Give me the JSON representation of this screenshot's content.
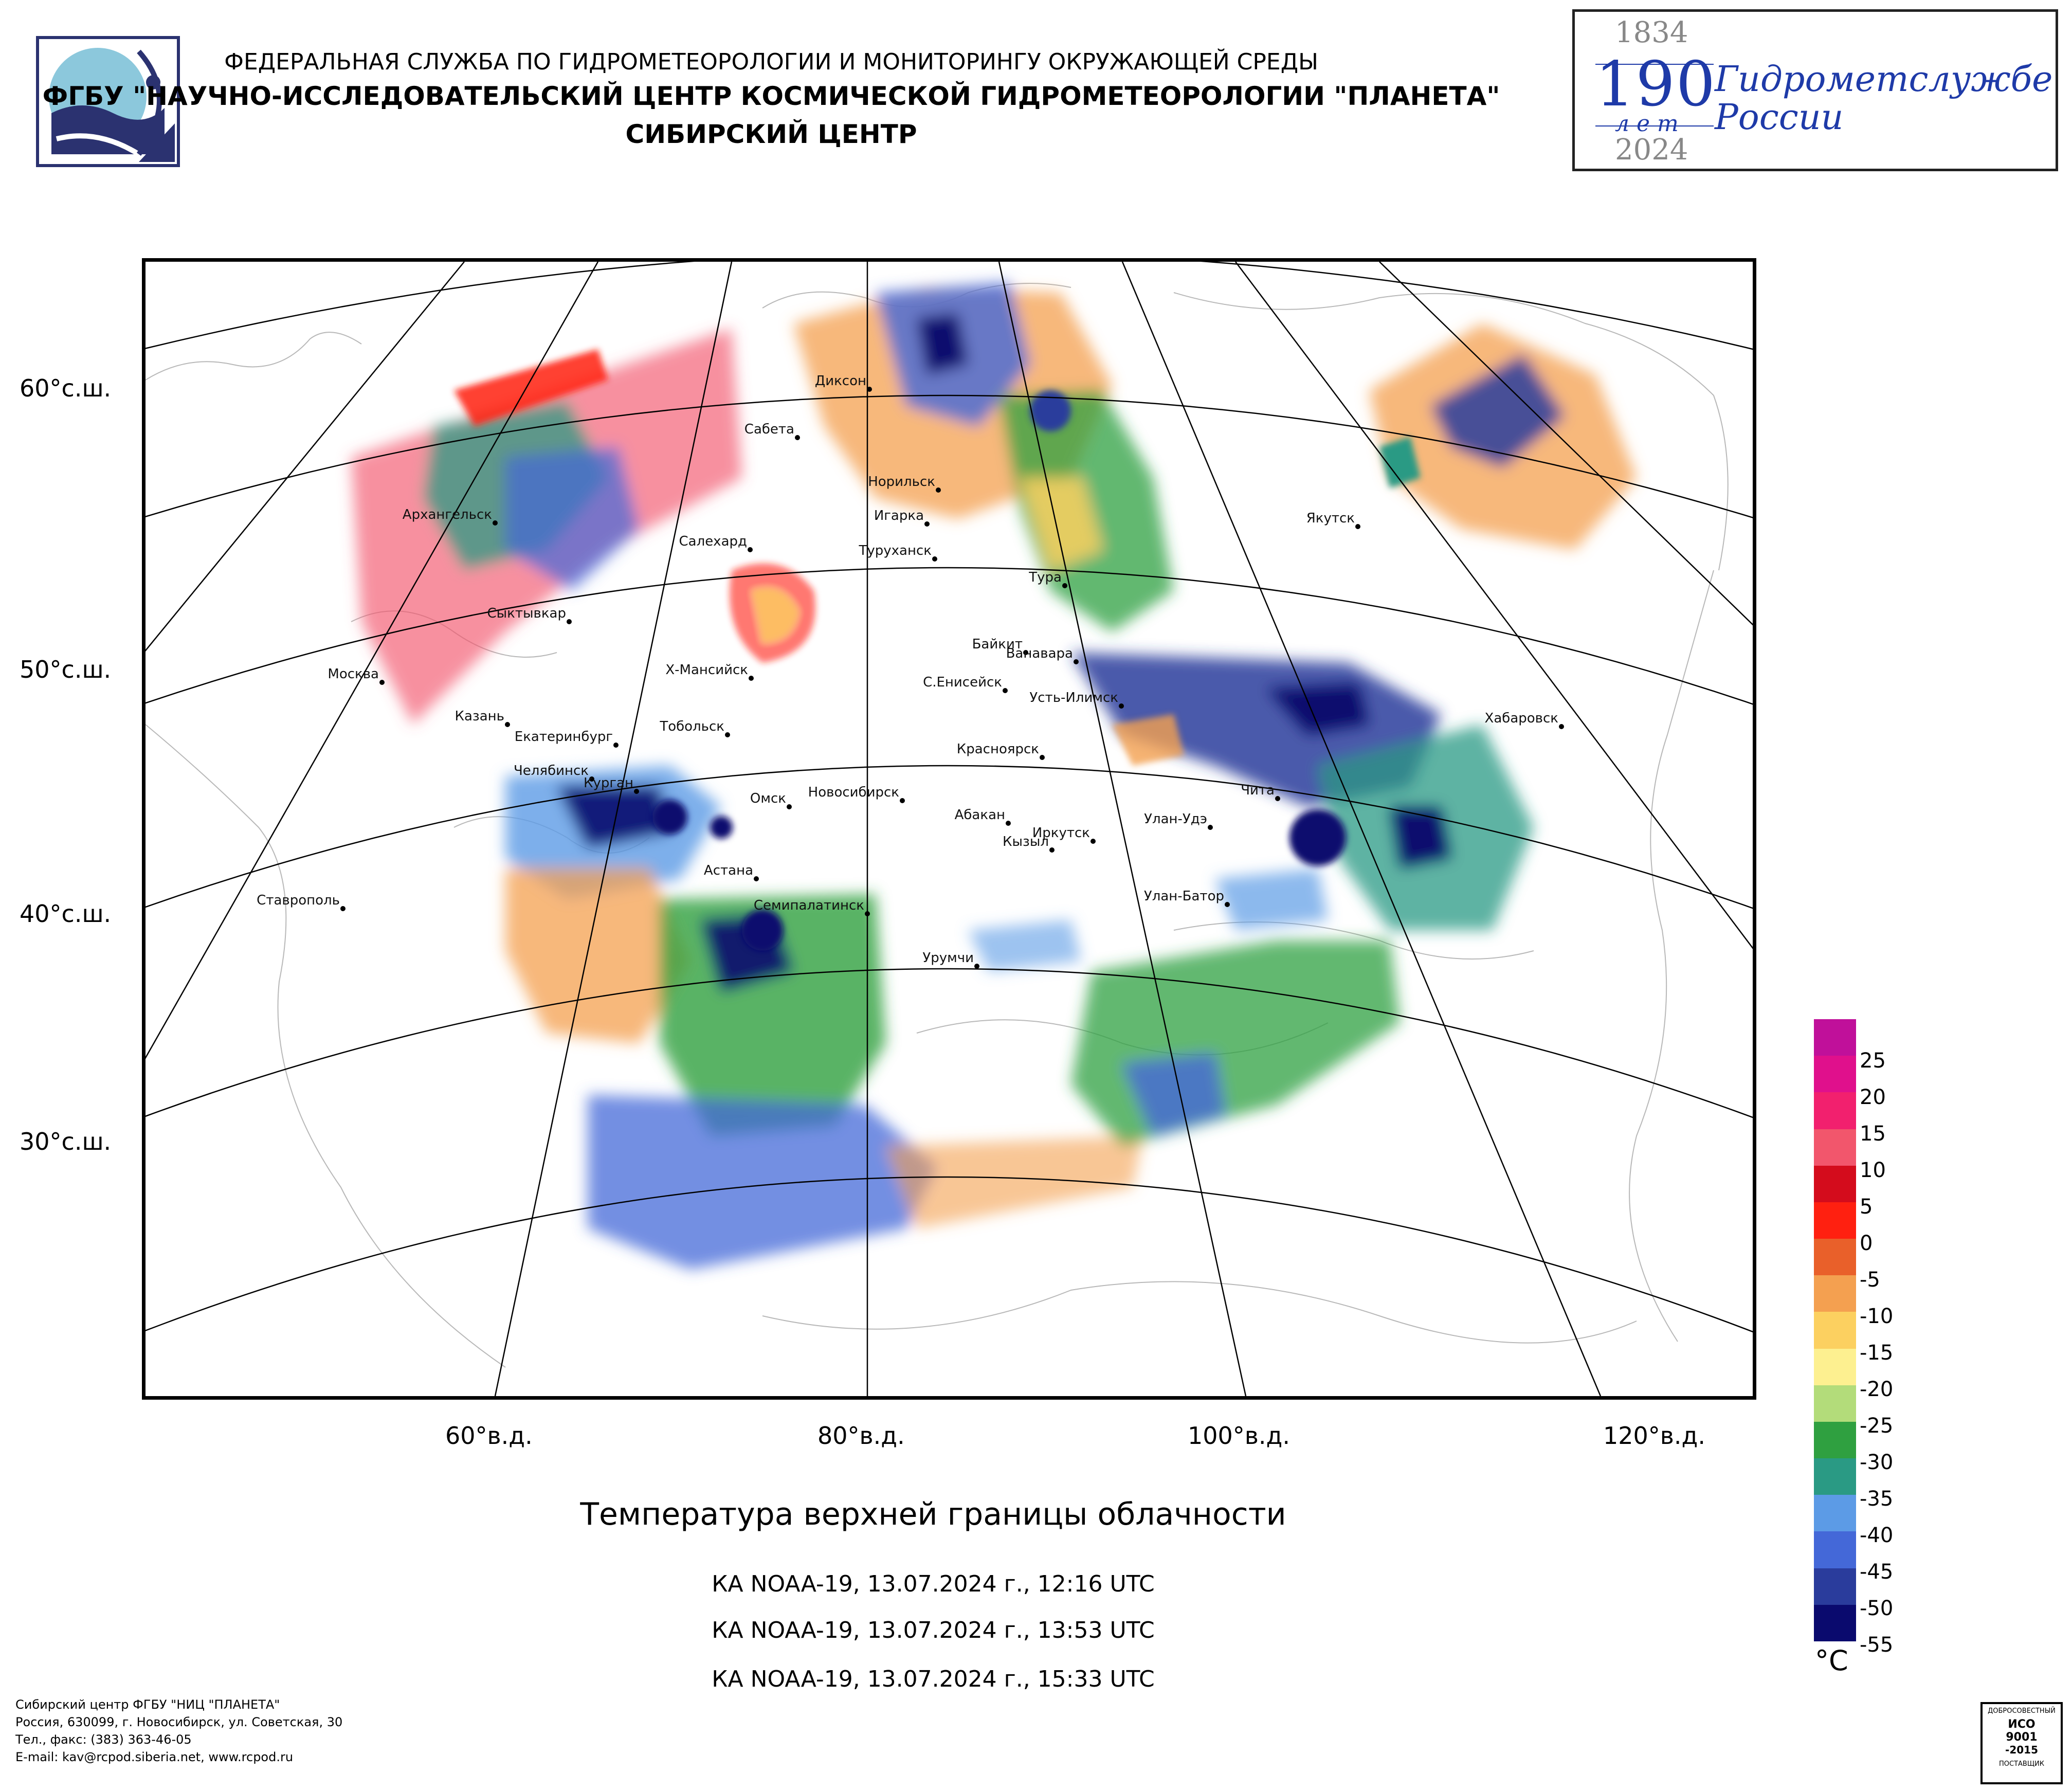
{
  "header": {
    "line1": "ФЕДЕРАЛЬНАЯ СЛУЖБА ПО ГИДРОМЕТЕОРОЛОГИИ И МОНИТОРИНГУ ОКРУЖАЮЩЕЙ СРЕДЫ",
    "line2": "ФГБУ \"НАУЧНО-ИССЛЕДОВАТЕЛЬСКИЙ ЦЕНТР КОСМИЧЕСКОЙ ГИДРОМЕТЕОРОЛОГИИ \"ПЛАНЕТА\"",
    "line3": "СИБИРСКИЙ ЦЕНТР"
  },
  "anniversary": {
    "year_start": "1834",
    "number": "190",
    "unit": "лет",
    "year_end": "2024",
    "name_line1": "Гидрометслужбе",
    "name_line2": "России"
  },
  "map": {
    "lat_labels": [
      "60°с.ш.",
      "50°с.ш.",
      "40°с.ш.",
      "30°с.ш."
    ],
    "lon_labels": [
      "60°в.д.",
      "80°в.д.",
      "100°в.д.",
      "120°в.д."
    ],
    "cities": [
      {
        "name": "Диксон"
      },
      {
        "name": "Сабета"
      },
      {
        "name": "Норильск"
      },
      {
        "name": "Игарка"
      },
      {
        "name": "Архангельск"
      },
      {
        "name": "Салехард"
      },
      {
        "name": "Туруханск"
      },
      {
        "name": "Тура"
      },
      {
        "name": "Якутск"
      },
      {
        "name": "Сыктывкар"
      },
      {
        "name": "Байкит"
      },
      {
        "name": "Ванавара"
      },
      {
        "name": "Москва"
      },
      {
        "name": "Х-Мансийск"
      },
      {
        "name": "С.Енисейск"
      },
      {
        "name": "Усть-Илимск"
      },
      {
        "name": "Хабаровск"
      },
      {
        "name": "Казань"
      },
      {
        "name": "Екатеринбург"
      },
      {
        "name": "Тобольск"
      },
      {
        "name": "Красноярск"
      },
      {
        "name": "Челябинск"
      },
      {
        "name": "Чита"
      },
      {
        "name": "Курган"
      },
      {
        "name": "Омск"
      },
      {
        "name": "Новосибирск"
      },
      {
        "name": "Абакан"
      },
      {
        "name": "Улан-Удэ"
      },
      {
        "name": "Иркутск"
      },
      {
        "name": "Кызыл"
      },
      {
        "name": "Ставрополь"
      },
      {
        "name": "Астана"
      },
      {
        "name": "Улан-Батор"
      },
      {
        "name": "Семипалатинск"
      },
      {
        "name": "Урумчи"
      }
    ]
  },
  "title": "Температура верхней границы облачности",
  "passes": [
    "КА NOAA-19, 13.07.2024 г., 12:16 UTC",
    "КА NOAA-19, 13.07.2024 г., 13:53 UTC",
    "КА NOAA-19, 13.07.2024 г., 15:33 UTC"
  ],
  "legend": {
    "unit": "°C",
    "ticks": [
      "25",
      "20",
      "15",
      "10",
      "5",
      "0",
      "-5",
      "-10",
      "-15",
      "-20",
      "-25",
      "-30",
      "-35",
      "-40",
      "-45",
      "-50",
      "-55"
    ],
    "colors": [
      "#c0109a",
      "#e0108c",
      "#f2206e",
      "#f2566c",
      "#d40c1c",
      "#ff2010",
      "#e9602a",
      "#f4a050",
      "#fcd060",
      "#fdf090",
      "#b3dc7a",
      "#2fa040",
      "#2a9a84",
      "#5c9be6",
      "#4468d8",
      "#2a3c9c",
      "#0a0a6e"
    ]
  },
  "footer": {
    "line1": "Сибирский центр ФГБУ \"НИЦ \"ПЛАНЕТА\"",
    "line2": "Россия, 630099, г. Новосибирск, ул. Советская, 30",
    "line3": "Тел., факс: (383) 363-46-05",
    "line4": "E-mail: kav@rcpod.siberia.net, www.rcpod.ru"
  },
  "certificate": {
    "top": "ДОБРОСОВЕСТНЫЙ",
    "line1": "ИСО",
    "line2": "9001",
    "line3": "-2015",
    "bottom": "ПОСТАВЩИК"
  }
}
